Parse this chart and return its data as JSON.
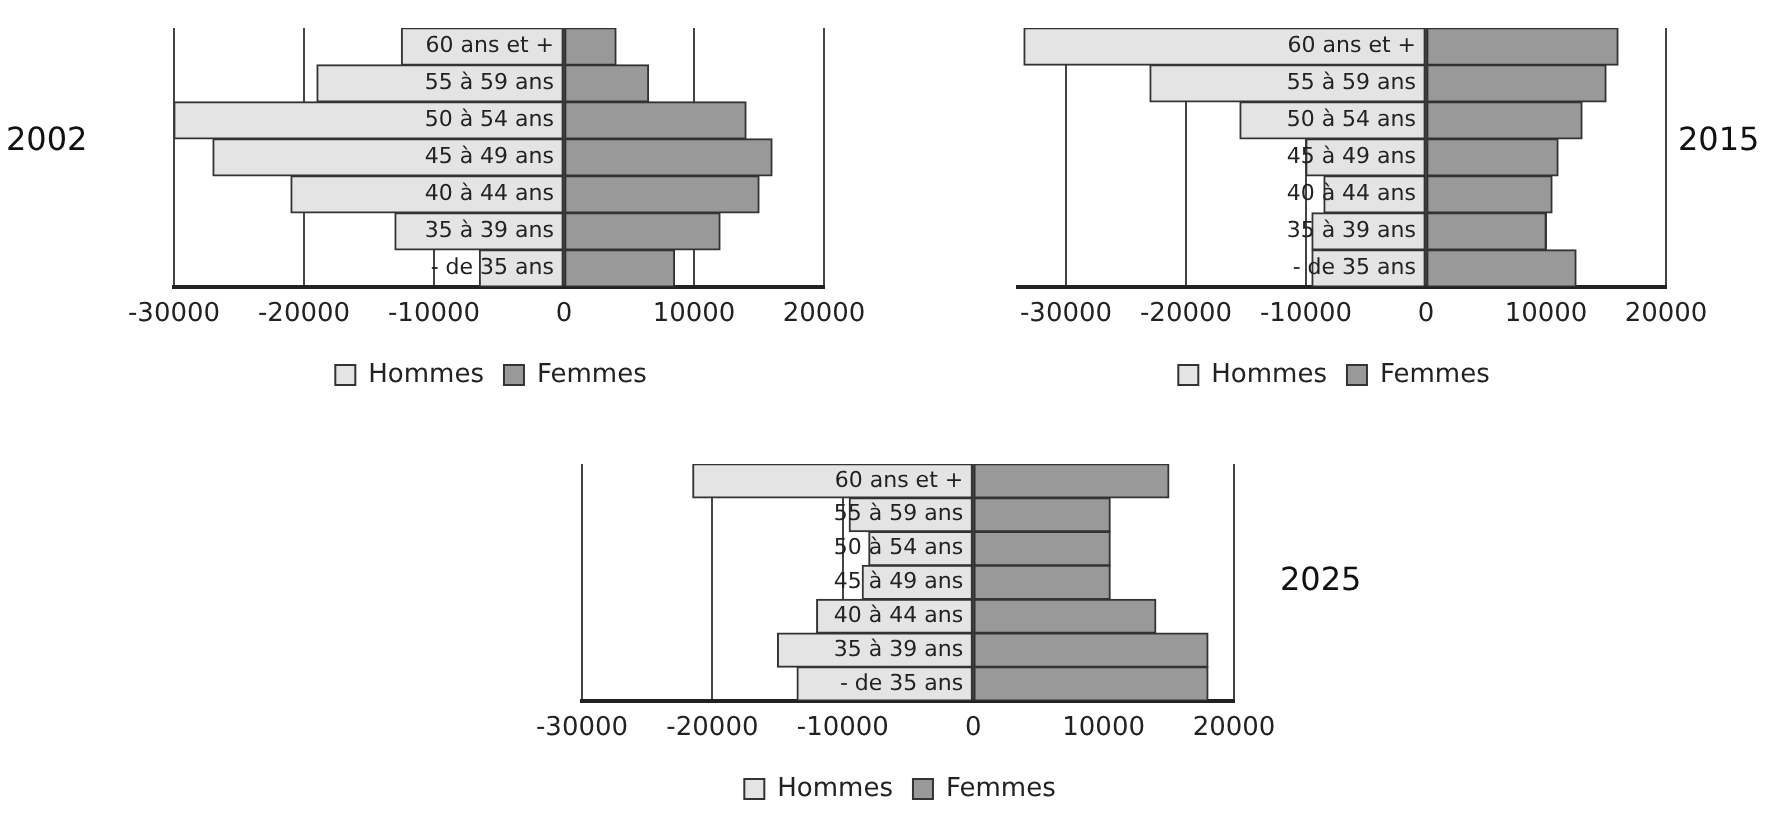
{
  "chart_data": [
    {
      "type": "bar",
      "title": "2002",
      "orientation": "horizontal",
      "stacked": true,
      "categories": [
        "60 ans et +",
        "55 à 59 ans",
        "50 à 54 ans",
        "45 à 49 ans",
        "40 à 44 ans",
        "35 à 39 ans",
        "- de 35 ans"
      ],
      "series": [
        {
          "name": "Hommes",
          "color": "#e4e4e4",
          "values": [
            -12500,
            -19000,
            -30000,
            -27000,
            -21000,
            -13000,
            -6500
          ]
        },
        {
          "name": "Femmes",
          "color": "#999999",
          "values": [
            4000,
            6500,
            14000,
            16000,
            15000,
            12000,
            8500
          ]
        }
      ],
      "xlim": [
        -30000,
        20000
      ],
      "xticks": [
        -30000,
        -20000,
        -10000,
        0,
        10000,
        20000
      ],
      "grid": "x",
      "legend": "bottom"
    },
    {
      "type": "bar",
      "title": "2015",
      "orientation": "horizontal",
      "stacked": true,
      "categories": [
        "60 ans et +",
        "55 à 59 ans",
        "50 à 54 ans",
        "45 à 49 ans",
        "40 à 44 ans",
        "35 à 39 ans",
        "- de 35 ans"
      ],
      "series": [
        {
          "name": "Hommes",
          "color": "#e4e4e4",
          "values": [
            -33500,
            -23000,
            -15500,
            -10000,
            -8500,
            -9500,
            -9500
          ]
        },
        {
          "name": "Femmes",
          "color": "#999999",
          "values": [
            16000,
            15000,
            13000,
            11000,
            10500,
            10000,
            12500
          ]
        }
      ],
      "xlim": [
        -34000,
        20000
      ],
      "xticks": [
        -30000,
        -20000,
        -10000,
        0,
        10000,
        20000
      ],
      "grid": "x",
      "legend": "bottom"
    },
    {
      "type": "bar",
      "title": "2025",
      "orientation": "horizontal",
      "stacked": true,
      "categories": [
        "60 ans et +",
        "55 à 59 ans",
        "50 à 54 ans",
        "45 à 49 ans",
        "40 à 44 ans",
        "35 à 39 ans",
        "- de 35 ans"
      ],
      "series": [
        {
          "name": "Hommes",
          "color": "#e4e4e4",
          "values": [
            -21500,
            -9500,
            -8000,
            -8500,
            -12000,
            -15000,
            -13500
          ]
        },
        {
          "name": "Femmes",
          "color": "#999999",
          "values": [
            15000,
            10500,
            10500,
            10500,
            14000,
            18000,
            18000
          ]
        }
      ],
      "xlim": [
        -30000,
        20000
      ],
      "xticks": [
        -30000,
        -20000,
        -10000,
        0,
        10000,
        20000
      ],
      "grid": "x",
      "legend": "bottom"
    }
  ]
}
